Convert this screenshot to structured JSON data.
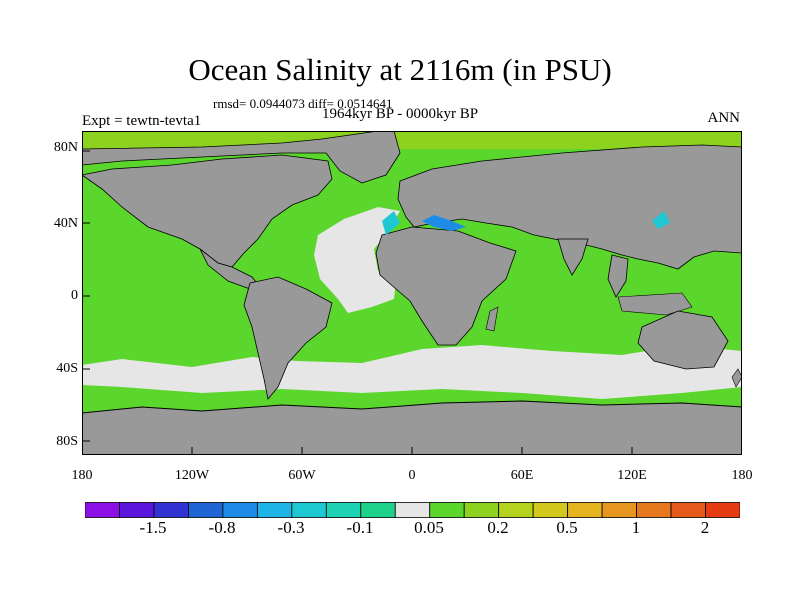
{
  "header": {
    "title": "Ocean Salinity at 2116m (in PSU)",
    "stats": "rmsd= 0.0944073 diff= 0.0514641",
    "period": "1964kyr BP - 0000kyr BP",
    "experiment": "Expt = tewtn-tevta1",
    "season": "ANN"
  },
  "axes": {
    "y_ticks": [
      "80N",
      "40N",
      "0",
      "40S",
      "80S"
    ],
    "x_ticks": [
      "180",
      "120W",
      "60W",
      "0",
      "60E",
      "120E",
      "180"
    ]
  },
  "colorbar": {
    "labels": [
      "-1.5",
      "-0.8",
      "-0.3",
      "-0.1",
      "0.05",
      "0.2",
      "0.5",
      "1",
      "2"
    ],
    "colors": [
      "#8c10e6",
      "#5a14dc",
      "#3232d2",
      "#1e64d2",
      "#1e8ce6",
      "#1eb4e6",
      "#1ec8d2",
      "#1ed2b4",
      "#1ed28c",
      "#e6e6e6",
      "#5ad62c",
      "#8cd21e",
      "#b4d21e",
      "#d2c81e",
      "#e6b41e",
      "#e6961e",
      "#e6781e",
      "#e65a1e",
      "#e63c14"
    ]
  },
  "legend_colors": {
    "land": "#999999",
    "ocean_main": "#5ad62c",
    "near_zero": "#e6e6e6",
    "arctic": "#8cd21e",
    "negative_patch": "#1ec8d2"
  }
}
